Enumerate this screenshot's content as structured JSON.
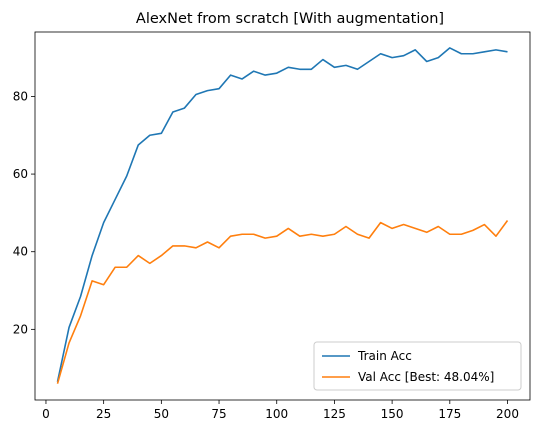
{
  "chart_data": {
    "type": "line",
    "title": "AlexNet from scratch [With augmentation]",
    "xlabel": "",
    "ylabel": "",
    "xlim": [
      -4.75,
      209.75
    ],
    "ylim": [
      1.8,
      96.6
    ],
    "xticks": [
      0,
      25,
      50,
      75,
      100,
      125,
      150,
      175,
      200
    ],
    "yticks": [
      20,
      40,
      60,
      80
    ],
    "grid": false,
    "legend_position": "lower-right",
    "x": [
      5,
      10,
      15,
      20,
      25,
      30,
      35,
      40,
      45,
      50,
      55,
      60,
      65,
      70,
      75,
      80,
      85,
      90,
      95,
      100,
      105,
      110,
      115,
      120,
      125,
      130,
      135,
      140,
      145,
      150,
      155,
      160,
      165,
      170,
      175,
      180,
      185,
      190,
      195,
      200
    ],
    "series": [
      {
        "name": "Train Acc",
        "color": "#1f77b4",
        "values": [
          6.5,
          20.5,
          28.5,
          39.0,
          47.5,
          53.5,
          59.5,
          67.5,
          70.0,
          70.5,
          76.0,
          77.0,
          80.5,
          81.5,
          82.0,
          85.5,
          84.5,
          86.5,
          85.5,
          86.0,
          87.5,
          87.0,
          87.0,
          89.5,
          87.5,
          88.0,
          87.0,
          89.0,
          91.0,
          90.0,
          90.5,
          92.0,
          89.0,
          90.0,
          92.5,
          91.0,
          91.0,
          91.5,
          92.0,
          91.5
        ]
      },
      {
        "name": "Val Acc [Best: 48.04%]",
        "color": "#ff7f0e",
        "values": [
          6.0,
          16.5,
          23.5,
          32.5,
          31.5,
          36.0,
          36.0,
          39.0,
          37.0,
          39.0,
          41.5,
          41.5,
          41.0,
          42.5,
          41.0,
          44.0,
          44.5,
          44.5,
          43.5,
          44.0,
          46.0,
          44.0,
          44.5,
          44.0,
          44.5,
          46.5,
          44.5,
          43.5,
          47.5,
          46.0,
          47.0,
          46.0,
          45.0,
          46.5,
          44.5,
          44.5,
          45.5,
          47.0,
          44.0,
          48.04
        ]
      }
    ]
  }
}
